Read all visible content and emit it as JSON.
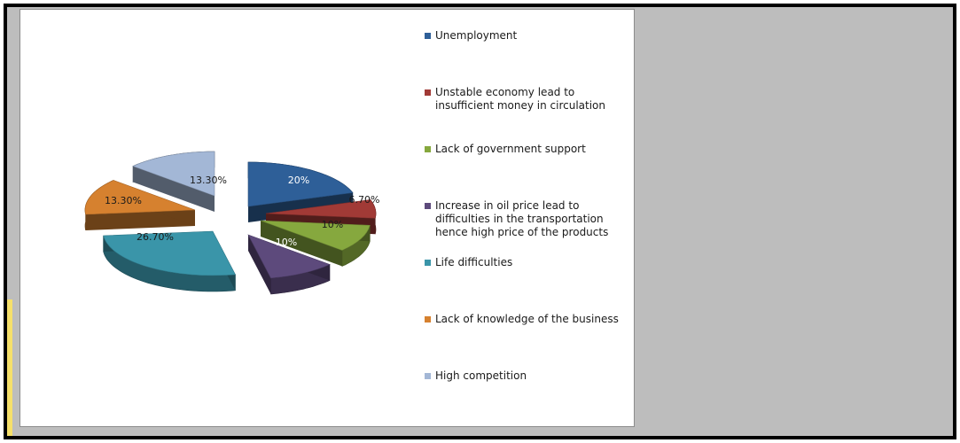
{
  "chart_data": {
    "type": "pie",
    "style": "3d-exploded",
    "slices": [
      {
        "label": "Unemployment",
        "value": 20,
        "display": "20%",
        "color": "#2e5f98"
      },
      {
        "label": "Unstable economy lead to insufficient money in circulation",
        "value": 6.7,
        "display": "6.70%",
        "color": "#a13a36"
      },
      {
        "label": "Lack of government support",
        "value": 10,
        "display": "10%",
        "color": "#86a83e"
      },
      {
        "label": "Increase in oil price lead to difficulties in the transportation hence high price of the products",
        "value": 10,
        "display": "10%",
        "color": "#5d4a7c"
      },
      {
        "label": "Life difficulties",
        "value": 26.7,
        "display": "26.70%",
        "color": "#3a95a9"
      },
      {
        "label": "Lack of knowledge of the business",
        "value": 13.3,
        "display": "13.30%",
        "color": "#d6812f"
      },
      {
        "label": "High competition",
        "value": 13.3,
        "display": "13.30%",
        "color": "#a3b7d6"
      }
    ],
    "legend_position": "right"
  }
}
